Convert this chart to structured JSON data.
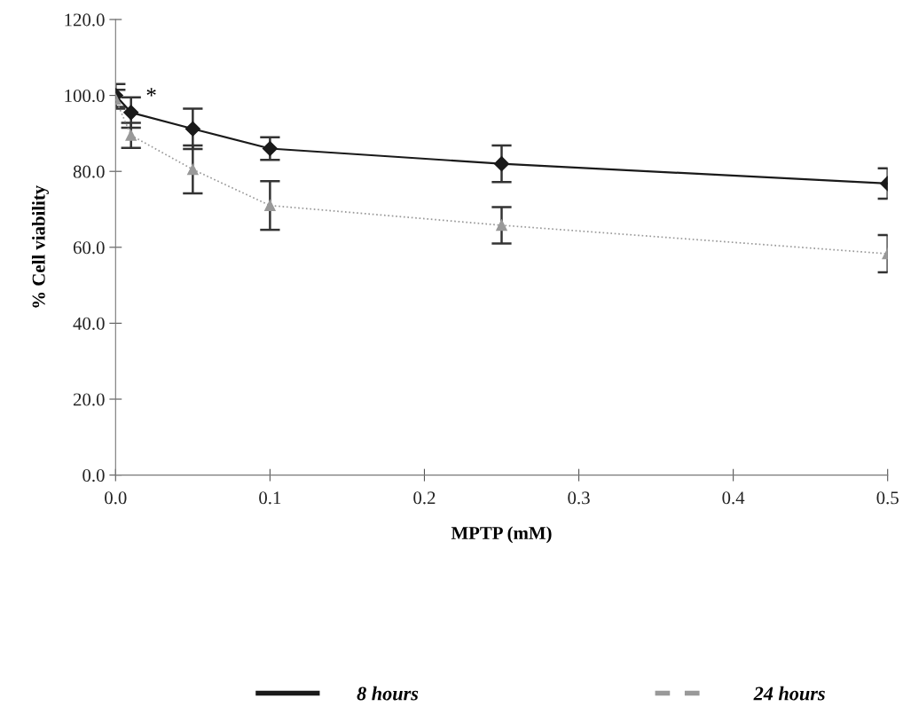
{
  "chart_data": {
    "type": "line",
    "xlabel": "MPTP (mM)",
    "ylabel": "% Cell viability",
    "x": [
      0,
      0.01,
      0.05,
      0.1,
      0.25,
      0.5
    ],
    "series": [
      {
        "name": "8 hours",
        "color": "#1a1a1a",
        "marker": "diamond",
        "line_style": "solid",
        "values": [
          100,
          95.5,
          91.2,
          86,
          82,
          76.8
        ],
        "errors": [
          3,
          4,
          5.3,
          3,
          4.8,
          4
        ]
      },
      {
        "name": "24 hours",
        "color": "#999999",
        "marker": "triangle",
        "line_style": "dotted",
        "values": [
          99,
          89.5,
          80.5,
          71,
          65.8,
          58.3
        ],
        "errors": [
          2.5,
          3.3,
          6.3,
          6.4,
          4.8,
          4.9
        ]
      }
    ],
    "annotations": [
      {
        "text": "*",
        "x": 0.01,
        "y": 99.5
      }
    ],
    "xlim": [
      0,
      0.5
    ],
    "xticks": [
      {
        "value": 0,
        "label": "0.0"
      },
      0.1,
      0.2,
      0.3,
      0.4,
      0.5
    ],
    "ylim": [
      0,
      120
    ],
    "yticks": [
      {
        "value": 0,
        "label": "0.0"
      },
      {
        "value": 20,
        "label": "20.0"
      },
      {
        "value": 40,
        "label": "40.0"
      },
      {
        "value": 60,
        "label": "60.0"
      },
      {
        "value": 80,
        "label": "80.0"
      },
      {
        "value": 100,
        "label": "100.0"
      },
      {
        "value": 120,
        "label": "120.0"
      }
    ],
    "grid": false,
    "legend": "bottom"
  }
}
